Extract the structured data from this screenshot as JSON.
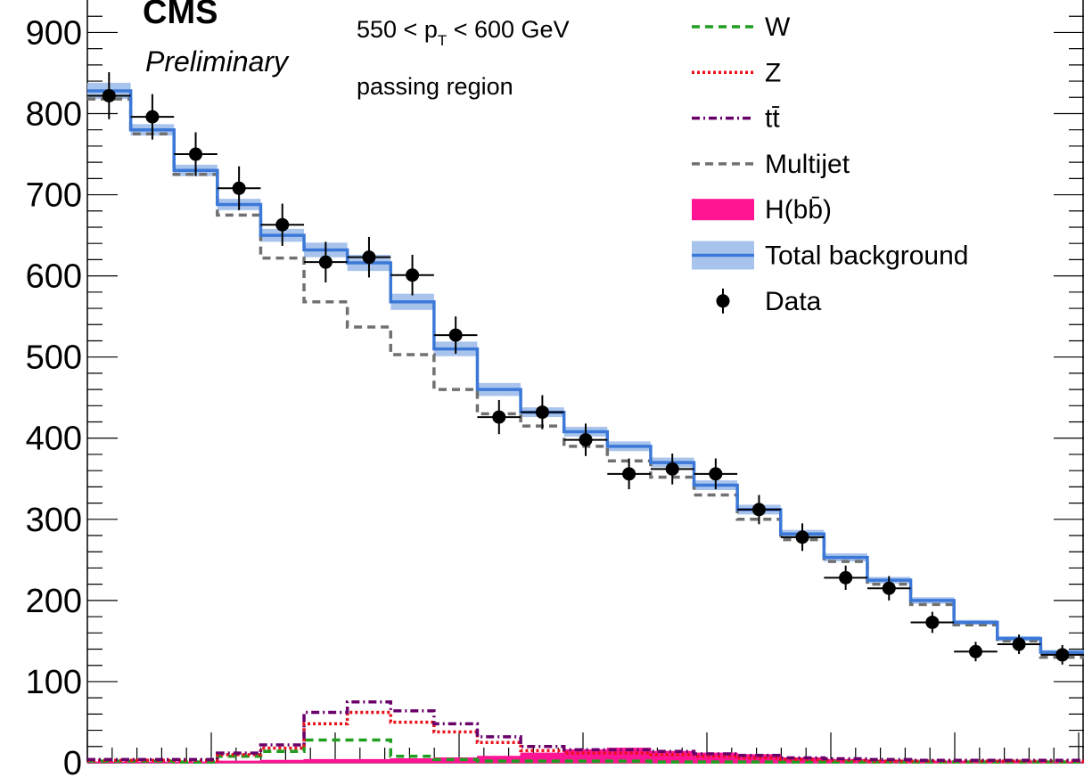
{
  "chart_data": {
    "type": "histogram",
    "experiment": "CMS",
    "status": "Preliminary",
    "region_prefix": "550 < p",
    "region_sub": "T",
    "region_suffix": " < 600 GeV",
    "region_label": "passing region",
    "xlabel": "",
    "ylabel": "",
    "ylim": [
      0,
      940
    ],
    "yticks": [
      0,
      100,
      200,
      300,
      400,
      500,
      600,
      700,
      800,
      900
    ],
    "nbins": 23,
    "legend_position": "top-right",
    "series": [
      {
        "name": "W",
        "style": "dashed",
        "color": "#1f9e1f",
        "values": [
          2,
          2,
          1,
          8,
          14,
          28,
          28,
          8,
          4,
          2,
          2,
          2,
          2,
          1,
          1,
          1,
          1,
          1,
          1,
          1,
          1,
          1,
          1
        ]
      },
      {
        "name": "Z",
        "style": "dotted",
        "color": "#e8121b",
        "values": [
          3,
          3,
          3,
          10,
          18,
          48,
          62,
          50,
          38,
          25,
          15,
          12,
          12,
          10,
          8,
          6,
          4,
          3,
          2,
          2,
          2,
          2,
          2
        ]
      },
      {
        "name": "tt̄",
        "style": "dashdot",
        "color": "#6a006a",
        "values": [
          4,
          4,
          4,
          12,
          22,
          62,
          75,
          64,
          48,
          32,
          20,
          16,
          16,
          14,
          11,
          9,
          6,
          5,
          4,
          3,
          3,
          3,
          3
        ]
      },
      {
        "name": "Multijet",
        "style": "dashed",
        "color": "#707070",
        "values": [
          818,
          775,
          725,
          675,
          622,
          568,
          537,
          503,
          460,
          430,
          415,
          390,
          372,
          352,
          330,
          300,
          275,
          248,
          220,
          195,
          170,
          150,
          130
        ]
      },
      {
        "name": "H(bb̄)",
        "style": "filled",
        "color": "#ff1493",
        "values": [
          1,
          1,
          1,
          2,
          3,
          4,
          4,
          5,
          6,
          8,
          12,
          16,
          18,
          14,
          12,
          10,
          6,
          4,
          3,
          2,
          2,
          2,
          1
        ]
      },
      {
        "name": "Total background",
        "style": "solid-band",
        "color": "#3b78d8",
        "values": [
          828,
          780,
          730,
          688,
          650,
          632,
          616,
          568,
          510,
          460,
          432,
          408,
          390,
          370,
          342,
          312,
          282,
          253,
          225,
          200,
          173,
          153,
          136
        ],
        "uncertainty": [
          10,
          7,
          7,
          7,
          8,
          9,
          10,
          10,
          9,
          8,
          6,
          6,
          6,
          6,
          6,
          6,
          5,
          5,
          4,
          4,
          3,
          3,
          3
        ]
      }
    ],
    "data": {
      "name": "Data",
      "values": [
        822,
        796,
        750,
        708,
        663,
        617,
        623,
        601,
        527,
        426,
        432,
        398,
        356,
        362,
        356,
        312,
        278,
        228,
        215,
        173,
        137,
        146,
        133
      ],
      "errors": [
        29,
        28,
        27,
        27,
        26,
        25,
        25,
        25,
        23,
        21,
        21,
        20,
        19,
        19,
        19,
        18,
        17,
        15,
        15,
        13,
        12,
        12,
        12
      ]
    }
  }
}
